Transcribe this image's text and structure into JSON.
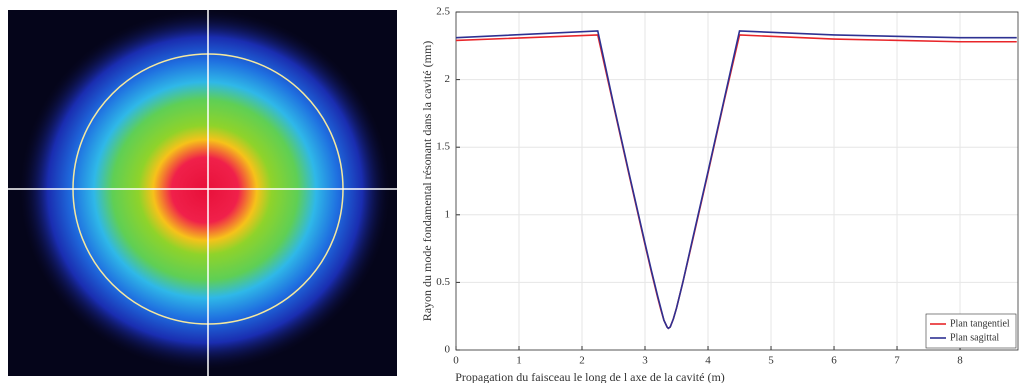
{
  "chart_data": {
    "type": "line",
    "xlabel": "Propagation du faisceau le long de l axe de la cavité (m)",
    "ylabel": "Rayon du mode fondamental résonant dans la cavité (mm)",
    "x": [
      0,
      2.25,
      2.5,
      2.75,
      3.0,
      3.1,
      3.2,
      3.25,
      3.3,
      3.35,
      3.37,
      3.4,
      3.45,
      3.5,
      3.6,
      3.75,
      4.0,
      4.25,
      4.5,
      6,
      8,
      8.9
    ],
    "series": [
      {
        "name": "Plan tangentiel",
        "color": "#e8262a",
        "values": [
          2.29,
          2.33,
          1.81,
          1.29,
          0.78,
          0.58,
          0.39,
          0.3,
          0.22,
          0.17,
          0.16,
          0.17,
          0.23,
          0.31,
          0.5,
          0.8,
          1.31,
          1.83,
          2.33,
          2.3,
          2.28,
          2.28
        ]
      },
      {
        "name": "Plan sagittal",
        "color": "#2e3192",
        "values": [
          2.31,
          2.36,
          1.82,
          1.3,
          0.79,
          0.59,
          0.4,
          0.31,
          0.22,
          0.17,
          0.16,
          0.17,
          0.23,
          0.31,
          0.5,
          0.81,
          1.32,
          1.84,
          2.36,
          2.33,
          2.31,
          2.31
        ]
      }
    ],
    "xlim": [
      0,
      8.92
    ],
    "xticks": [
      0,
      1,
      2,
      3,
      4,
      5,
      6,
      7,
      8
    ],
    "ylim": [
      0,
      2.5
    ],
    "yticks": [
      0,
      0.5,
      1,
      1.5,
      2,
      2.5
    ],
    "grid": true,
    "legend": "lower right"
  }
}
